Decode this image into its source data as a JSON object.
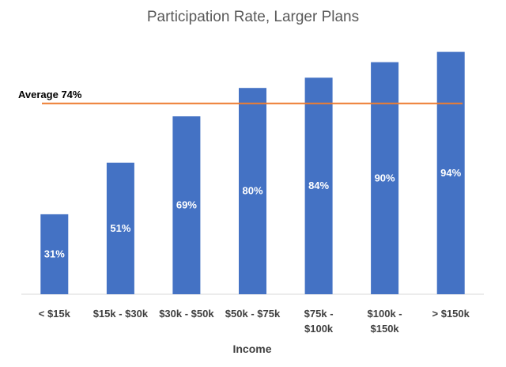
{
  "chart_data": {
    "type": "bar",
    "title": "Participation Rate, Larger Plans",
    "xlabel": "Income",
    "ylabel": "",
    "ylim": [
      0,
      100
    ],
    "grid": false,
    "categories": [
      [
        "< $15k"
      ],
      [
        "$15k - $30k"
      ],
      [
        "$30k - $50k"
      ],
      [
        "$50k - $75k"
      ],
      [
        "$75k -",
        "$100k"
      ],
      [
        "$100k -",
        "$150k"
      ],
      [
        "> $150k"
      ]
    ],
    "values": [
      31,
      51,
      69,
      80,
      84,
      90,
      94
    ],
    "data_labels": [
      "31%",
      "51%",
      "69%",
      "80%",
      "84%",
      "90%",
      "94%"
    ],
    "reference_line": {
      "label": "Average 74%",
      "value": 74,
      "color": "#ED7D31"
    },
    "bar_color": "#4472C4"
  }
}
